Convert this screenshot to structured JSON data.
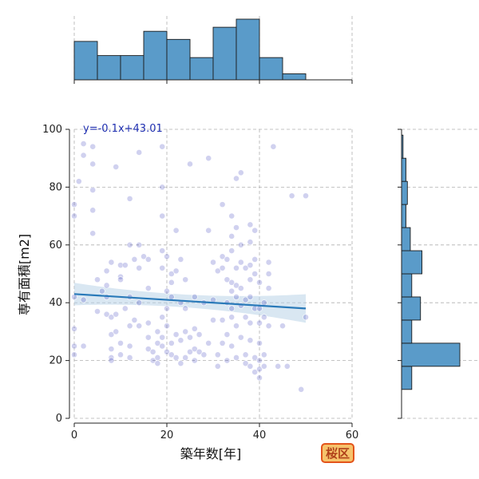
{
  "badge": {
    "label": "桜区",
    "bg_color": "#f6c36c",
    "border_color": "#e3541b"
  },
  "chart_data": {
    "type": "scatter",
    "xlabel": "築年数[年]",
    "ylabel": "専有面積[m2]",
    "xlim": [
      0,
      60
    ],
    "ylim": [
      0,
      100
    ],
    "xticks": [
      0,
      20,
      40,
      60
    ],
    "yticks": [
      0,
      20,
      40,
      60,
      80,
      100
    ],
    "grid": true,
    "annotation": "y=-0.1x+43.01",
    "point_color": "#2b2db8",
    "regression": {
      "slope": -0.1,
      "intercept": 43.01,
      "x_range": [
        0,
        50
      ],
      "color": "#2a7ab9",
      "band_color": "#b9d3e8"
    },
    "marginal_x": {
      "color": "#5a9bc9",
      "bins": [
        {
          "x0": 0,
          "x1": 5,
          "count": 19
        },
        {
          "x0": 5,
          "x1": 10,
          "count": 12
        },
        {
          "x0": 10,
          "x1": 15,
          "count": 12
        },
        {
          "x0": 15,
          "x1": 20,
          "count": 24
        },
        {
          "x0": 20,
          "x1": 25,
          "count": 20
        },
        {
          "x0": 25,
          "x1": 30,
          "count": 11
        },
        {
          "x0": 30,
          "x1": 35,
          "count": 26
        },
        {
          "x0": 35,
          "x1": 40,
          "count": 30
        },
        {
          "x0": 40,
          "x1": 45,
          "count": 11
        },
        {
          "x0": 45,
          "x1": 50,
          "count": 3
        }
      ]
    },
    "marginal_y": {
      "color": "#5a9bc9",
      "bins": [
        {
          "y0": 10,
          "y1": 18,
          "count": 7
        },
        {
          "y0": 18,
          "y1": 26,
          "count": 40
        },
        {
          "y0": 26,
          "y1": 34,
          "count": 7
        },
        {
          "y0": 34,
          "y1": 42,
          "count": 13
        },
        {
          "y0": 42,
          "y1": 50,
          "count": 7
        },
        {
          "y0": 50,
          "y1": 58,
          "count": 14
        },
        {
          "y0": 58,
          "y1": 66,
          "count": 6
        },
        {
          "y0": 66,
          "y1": 74,
          "count": 3
        },
        {
          "y0": 74,
          "y1": 82,
          "count": 4
        },
        {
          "y0": 82,
          "y1": 90,
          "count": 3
        },
        {
          "y0": 90,
          "y1": 98,
          "count": 1
        }
      ]
    },
    "points": [
      [
        0,
        42
      ],
      [
        0,
        74
      ],
      [
        0,
        70
      ],
      [
        0,
        31
      ],
      [
        0,
        25
      ],
      [
        0,
        22
      ],
      [
        1,
        82
      ],
      [
        2,
        95
      ],
      [
        2,
        91
      ],
      [
        2,
        41
      ],
      [
        2,
        25
      ],
      [
        4,
        94
      ],
      [
        4,
        88
      ],
      [
        4,
        79
      ],
      [
        4,
        72
      ],
      [
        4,
        64
      ],
      [
        5,
        48
      ],
      [
        5,
        37
      ],
      [
        6,
        44
      ],
      [
        7,
        51
      ],
      [
        7,
        46
      ],
      [
        7,
        42
      ],
      [
        7,
        36
      ],
      [
        8,
        54
      ],
      [
        8,
        35
      ],
      [
        8,
        29
      ],
      [
        8,
        24
      ],
      [
        8,
        21
      ],
      [
        8,
        20
      ],
      [
        9,
        87
      ],
      [
        9,
        36
      ],
      [
        9,
        30
      ],
      [
        10,
        49
      ],
      [
        10,
        48
      ],
      [
        10,
        53
      ],
      [
        10,
        26
      ],
      [
        10,
        22
      ],
      [
        11,
        53
      ],
      [
        11,
        38
      ],
      [
        12,
        76
      ],
      [
        12,
        60
      ],
      [
        12,
        42
      ],
      [
        12,
        32
      ],
      [
        12,
        25
      ],
      [
        12,
        21
      ],
      [
        13,
        55
      ],
      [
        13,
        34
      ],
      [
        14,
        92
      ],
      [
        14,
        60
      ],
      [
        14,
        52
      ],
      [
        14,
        40
      ],
      [
        14,
        32
      ],
      [
        15,
        56
      ],
      [
        16,
        55
      ],
      [
        16,
        45
      ],
      [
        16,
        33
      ],
      [
        16,
        28
      ],
      [
        16,
        24
      ],
      [
        17,
        23
      ],
      [
        17,
        20
      ],
      [
        18,
        30
      ],
      [
        18,
        26
      ],
      [
        18,
        21
      ],
      [
        18,
        19
      ],
      [
        19,
        94
      ],
      [
        19,
        80
      ],
      [
        19,
        70
      ],
      [
        19,
        58
      ],
      [
        19,
        52
      ],
      [
        19,
        35
      ],
      [
        19,
        28
      ],
      [
        19,
        25
      ],
      [
        20,
        56
      ],
      [
        20,
        44
      ],
      [
        20,
        38
      ],
      [
        20,
        32
      ],
      [
        20,
        23
      ],
      [
        21,
        50
      ],
      [
        21,
        47
      ],
      [
        21,
        42
      ],
      [
        21,
        26
      ],
      [
        21,
        22
      ],
      [
        22,
        65
      ],
      [
        22,
        51
      ],
      [
        22,
        29
      ],
      [
        22,
        21
      ],
      [
        23,
        55
      ],
      [
        23,
        40
      ],
      [
        23,
        27
      ],
      [
        23,
        19
      ],
      [
        24,
        48
      ],
      [
        24,
        38
      ],
      [
        24,
        30
      ],
      [
        24,
        21
      ],
      [
        25,
        88
      ],
      [
        25,
        28
      ],
      [
        25,
        23
      ],
      [
        26,
        42
      ],
      [
        26,
        31
      ],
      [
        26,
        24
      ],
      [
        26,
        20
      ],
      [
        27,
        29
      ],
      [
        27,
        23
      ],
      [
        28,
        22
      ],
      [
        28,
        40
      ],
      [
        29,
        90
      ],
      [
        29,
        65
      ],
      [
        29,
        26
      ],
      [
        30,
        54
      ],
      [
        30,
        41
      ],
      [
        30,
        34
      ],
      [
        31,
        51
      ],
      [
        31,
        22
      ],
      [
        31,
        18
      ],
      [
        32,
        74
      ],
      [
        32,
        56
      ],
      [
        32,
        52
      ],
      [
        32,
        34
      ],
      [
        32,
        26
      ],
      [
        33,
        55
      ],
      [
        33,
        48
      ],
      [
        33,
        40
      ],
      [
        33,
        29
      ],
      [
        33,
        20
      ],
      [
        34,
        70
      ],
      [
        34,
        63
      ],
      [
        34,
        58
      ],
      [
        34,
        47
      ],
      [
        34,
        44
      ],
      [
        34,
        38
      ],
      [
        34,
        35
      ],
      [
        34,
        25
      ],
      [
        35,
        83
      ],
      [
        35,
        66
      ],
      [
        35,
        52
      ],
      [
        35,
        46
      ],
      [
        35,
        42
      ],
      [
        35,
        32
      ],
      [
        35,
        21
      ],
      [
        36,
        85
      ],
      [
        36,
        60
      ],
      [
        36,
        54
      ],
      [
        36,
        45
      ],
      [
        36,
        39
      ],
      [
        36,
        28
      ],
      [
        37,
        52
      ],
      [
        37,
        41
      ],
      [
        37,
        35
      ],
      [
        37,
        22
      ],
      [
        37,
        19
      ],
      [
        38,
        67
      ],
      [
        38,
        61
      ],
      [
        38,
        53
      ],
      [
        38,
        48
      ],
      [
        38,
        42
      ],
      [
        38,
        33
      ],
      [
        38,
        27
      ],
      [
        38,
        18
      ],
      [
        39,
        65
      ],
      [
        39,
        55
      ],
      [
        39,
        50
      ],
      [
        39,
        38
      ],
      [
        39,
        21
      ],
      [
        39,
        16
      ],
      [
        40,
        47
      ],
      [
        40,
        38
      ],
      [
        40,
        33
      ],
      [
        40,
        26
      ],
      [
        40,
        20
      ],
      [
        40,
        17
      ],
      [
        40,
        14
      ],
      [
        41,
        40
      ],
      [
        41,
        35
      ],
      [
        41,
        22
      ],
      [
        41,
        18
      ],
      [
        42,
        54
      ],
      [
        42,
        50
      ],
      [
        42,
        45
      ],
      [
        42,
        32
      ],
      [
        43,
        94
      ],
      [
        44,
        18
      ],
      [
        45,
        32
      ],
      [
        46,
        18
      ],
      [
        47,
        77
      ],
      [
        49,
        10
      ],
      [
        50,
        77
      ],
      [
        50,
        35
      ]
    ]
  }
}
